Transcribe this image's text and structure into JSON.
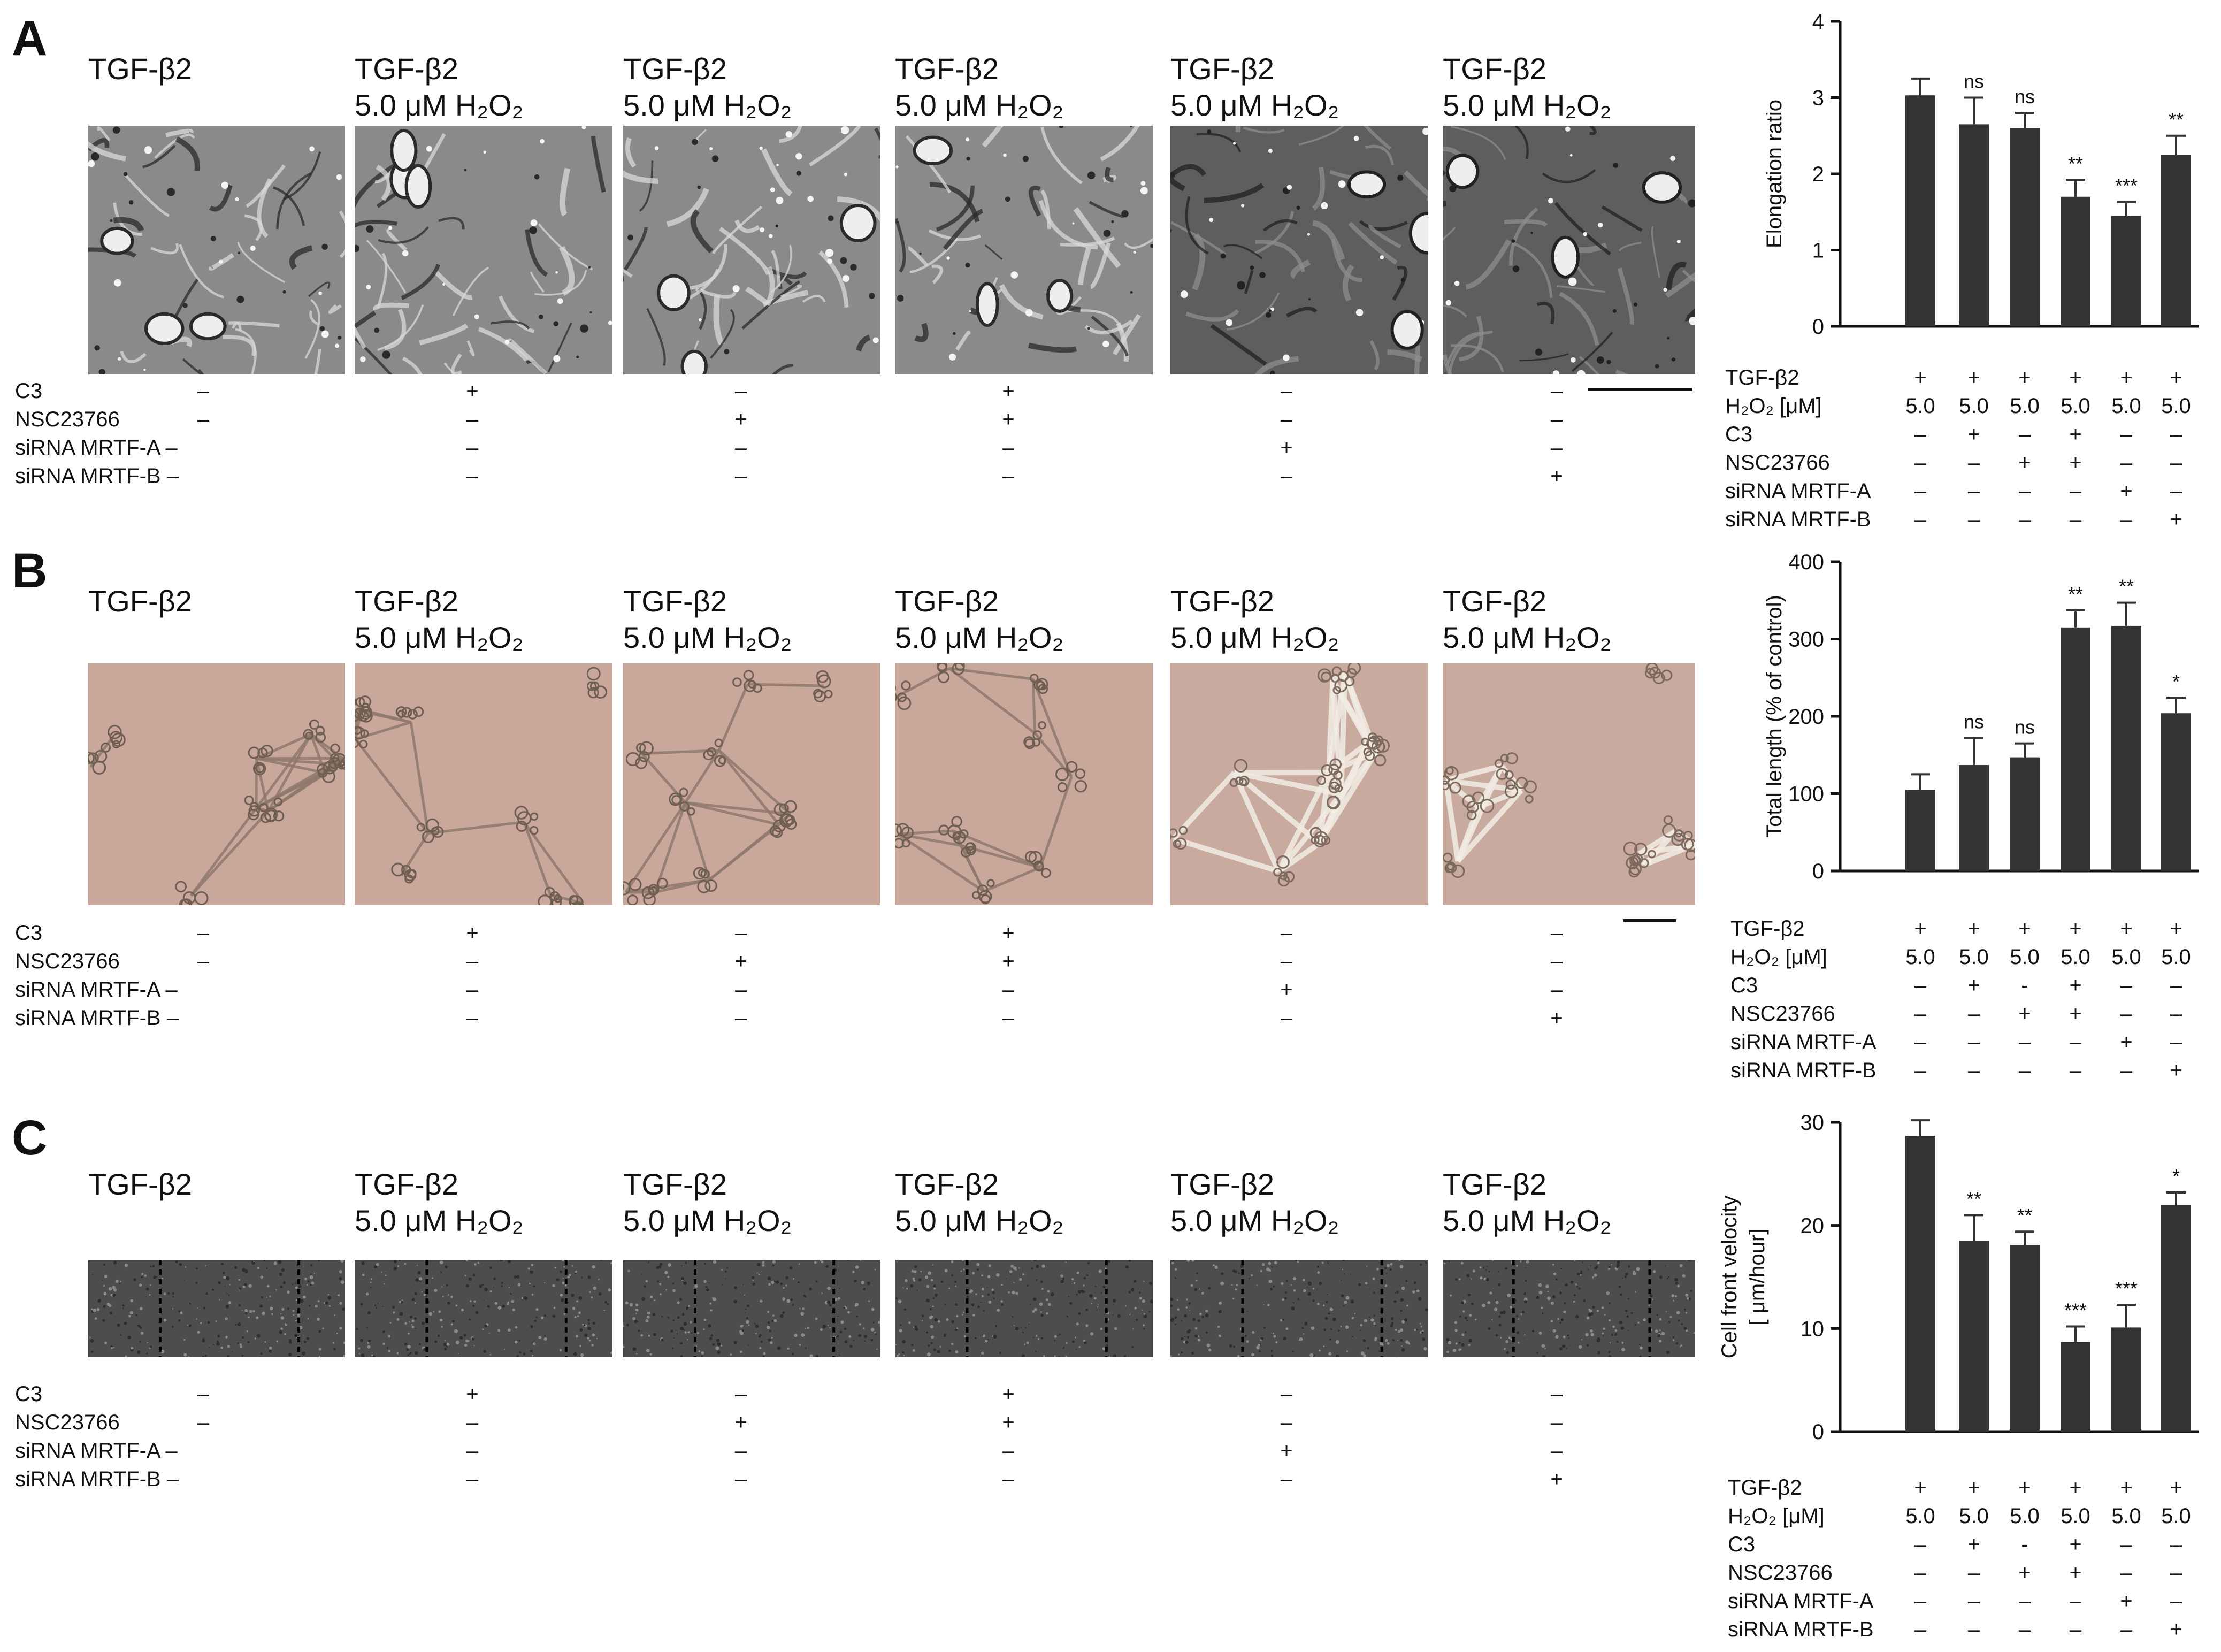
{
  "panels": [
    {
      "label": "A",
      "images": [
        {
          "title1": "TGF-β2",
          "title2": "",
          "style": "phase-gray-dark"
        },
        {
          "title1": "TGF-β2",
          "title2": "5.0 μM H₂O₂",
          "style": "phase-gray-dark"
        },
        {
          "title1": "TGF-β2",
          "title2": "5.0 μM H₂O₂",
          "style": "phase-gray-dark"
        },
        {
          "title1": "TGF-β2",
          "title2": "5.0 μM H₂O₂",
          "style": "phase-gray-dark"
        },
        {
          "title1": "TGF-β2",
          "title2": "5.0 μM H₂O₂",
          "style": "phase-gray-mid"
        },
        {
          "title1": "TGF-β2",
          "title2": "5.0 μM H₂O₂",
          "style": "phase-gray-mid"
        }
      ],
      "treatments": [
        {
          "label": "C3",
          "values": [
            "–",
            "+",
            "–",
            "+",
            "–",
            "–"
          ]
        },
        {
          "label": "NSC23766",
          "values": [
            "–",
            "–",
            "+",
            "+",
            "–",
            "–"
          ]
        },
        {
          "label": "siRNA MRTF-A –",
          "values": [
            "",
            "–",
            "–",
            "–",
            "+",
            "–"
          ]
        },
        {
          "label": "siRNA MRTF-B –",
          "values": [
            "",
            "–",
            "–",
            "–",
            "–",
            "+"
          ]
        }
      ],
      "chart_table": [
        {
          "label": "TGF-β2",
          "values": [
            "+",
            "+",
            "+",
            "+",
            "+",
            "+"
          ]
        },
        {
          "label": "H₂O₂ [μM]",
          "values": [
            "5.0",
            "5.0",
            "5.0",
            "5.0",
            "5.0",
            "5.0"
          ]
        },
        {
          "label": "C3",
          "values": [
            "–",
            "+",
            "–",
            "+",
            "–",
            "–"
          ]
        },
        {
          "label": "NSC23766",
          "values": [
            "–",
            "–",
            "+",
            "+",
            "–",
            "–"
          ]
        },
        {
          "label": "siRNA MRTF-A",
          "values": [
            "–",
            "–",
            "–",
            "–",
            "+",
            "–"
          ]
        },
        {
          "label": "siRNA MRTF-B",
          "values": [
            "–",
            "–",
            "–",
            "–",
            "–",
            "+"
          ]
        }
      ]
    },
    {
      "label": "B",
      "images": [
        {
          "title1": "TGF-β2",
          "title2": "",
          "style": "tube-pink"
        },
        {
          "title1": "TGF-β2",
          "title2": "5.0 μM H₂O₂",
          "style": "tube-pink"
        },
        {
          "title1": "TGF-β2",
          "title2": "5.0 μM H₂O₂",
          "style": "tube-pink"
        },
        {
          "title1": "TGF-β2",
          "title2": "5.0 μM H₂O₂",
          "style": "tube-pink"
        },
        {
          "title1": "TGF-β2",
          "title2": "5.0 μM H₂O₂",
          "style": "tube-pink-light"
        },
        {
          "title1": "TGF-β2",
          "title2": "5.0 μM H₂O₂",
          "style": "tube-pink-light"
        }
      ],
      "treatments": [
        {
          "label": "C3",
          "values": [
            "–",
            "+",
            "–",
            "+",
            "–",
            "–"
          ]
        },
        {
          "label": "NSC23766",
          "values": [
            "–",
            "–",
            "+",
            "+",
            "–",
            "–"
          ]
        },
        {
          "label": "siRNA MRTF-A –",
          "values": [
            "",
            "–",
            "–",
            "–",
            "+",
            "–"
          ]
        },
        {
          "label": "siRNA MRTF-B –",
          "values": [
            "",
            "–",
            "–",
            "–",
            "–",
            "+"
          ]
        }
      ],
      "chart_table": [
        {
          "label": "TGF-β2",
          "values": [
            "+",
            "+",
            "+",
            "+",
            "+",
            "+"
          ]
        },
        {
          "label": "H₂O₂ [μM]",
          "values": [
            "5.0",
            "5.0",
            "5.0",
            "5.0",
            "5.0",
            "5.0"
          ]
        },
        {
          "label": "C3",
          "values": [
            "–",
            "+",
            "-",
            "+",
            "–",
            "–"
          ]
        },
        {
          "label": "NSC23766",
          "values": [
            "–",
            "–",
            "+",
            "+",
            "–",
            "–"
          ]
        },
        {
          "label": "siRNA MRTF-A",
          "values": [
            "–",
            "–",
            "–",
            "–",
            "+",
            "–"
          ]
        },
        {
          "label": "siRNA MRTF-B",
          "values": [
            "–",
            "–",
            "–",
            "–",
            "–",
            "+"
          ]
        }
      ]
    },
    {
      "label": "C",
      "images": [
        {
          "title1": "TGF-β2",
          "title2": "",
          "style": "scratch-gray"
        },
        {
          "title1": "TGF-β2",
          "title2": "5.0 μM H₂O₂",
          "style": "scratch-gray"
        },
        {
          "title1": "TGF-β2",
          "title2": "5.0 μM H₂O₂",
          "style": "scratch-gray"
        },
        {
          "title1": "TGF-β2",
          "title2": "5.0 μM H₂O₂",
          "style": "scratch-gray"
        },
        {
          "title1": "TGF-β2",
          "title2": "5.0 μM H₂O₂",
          "style": "scratch-gray"
        },
        {
          "title1": "TGF-β2",
          "title2": "5.0 μM H₂O₂",
          "style": "scratch-gray"
        }
      ],
      "treatments": [
        {
          "label": "C3",
          "values": [
            "–",
            "+",
            "–",
            "+",
            "–",
            "–"
          ]
        },
        {
          "label": "NSC23766",
          "values": [
            "–",
            "–",
            "+",
            "+",
            "–",
            "–"
          ]
        },
        {
          "label": "siRNA MRTF-A –",
          "values": [
            "",
            "–",
            "–",
            "–",
            "+",
            "–"
          ]
        },
        {
          "label": "siRNA MRTF-B –",
          "values": [
            "",
            "–",
            "–",
            "–",
            "–",
            "+"
          ]
        }
      ],
      "chart_table": [
        {
          "label": "TGF-β2",
          "values": [
            "+",
            "+",
            "+",
            "+",
            "+",
            "+"
          ]
        },
        {
          "label": "H₂O₂ [μM]",
          "values": [
            "5.0",
            "5.0",
            "5.0",
            "5.0",
            "5.0",
            "5.0"
          ]
        },
        {
          "label": "C3",
          "values": [
            "–",
            "+",
            "-",
            "+",
            "–",
            "–"
          ]
        },
        {
          "label": "NSC23766",
          "values": [
            "–",
            "–",
            "+",
            "+",
            "–",
            "–"
          ]
        },
        {
          "label": "siRNA MRTF-A",
          "values": [
            "–",
            "–",
            "–",
            "–",
            "+",
            "–"
          ]
        },
        {
          "label": "siRNA MRTF-B",
          "values": [
            "–",
            "–",
            "–",
            "–",
            "–",
            "+"
          ]
        }
      ]
    }
  ],
  "colors": {
    "bar": "#333333",
    "axis": "#111111"
  },
  "chart_data": [
    {
      "type": "bar",
      "ylabel": "Elongation ratio",
      "ylim": [
        0,
        4
      ],
      "yticks": [
        0,
        1,
        2,
        3,
        4
      ],
      "values": [
        3.03,
        2.65,
        2.6,
        1.7,
        1.45,
        2.25
      ],
      "errors": [
        0.22,
        0.35,
        0.2,
        0.22,
        0.18,
        0.25
      ],
      "annotations": [
        "",
        "ns",
        "ns",
        "**",
        "***",
        "**"
      ]
    },
    {
      "type": "bar",
      "ylabel": "Total length (% of control)",
      "ylim": [
        0,
        400
      ],
      "yticks": [
        0,
        100,
        200,
        300,
        400
      ],
      "values": [
        105,
        137,
        147,
        315,
        317,
        204
      ],
      "errors": [
        20,
        35,
        18,
        22,
        30,
        20
      ],
      "annotations": [
        "",
        "ns",
        "ns",
        "**",
        "**",
        "*"
      ]
    },
    {
      "type": "bar",
      "ylabel": "Cell front velocity\n[ μm/hour]",
      "ylim": [
        0,
        30
      ],
      "yticks": [
        0,
        10,
        20,
        30
      ],
      "values": [
        28.7,
        18.5,
        18.1,
        8.7,
        10.1,
        22.0
      ],
      "errors": [
        1.5,
        2.5,
        1.3,
        1.5,
        2.2,
        1.2
      ],
      "annotations": [
        "",
        "**",
        "**",
        "***",
        "***",
        "*"
      ]
    }
  ]
}
